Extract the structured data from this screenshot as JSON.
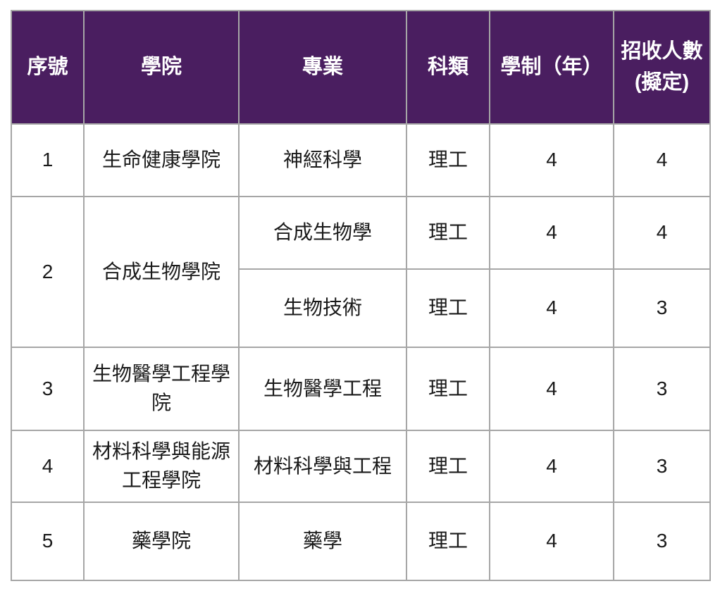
{
  "theme": {
    "header_bg": "#4a1e60",
    "header_text": "#ffffff",
    "border_color": "#a6a6a6",
    "cell_text": "#1a1a1a"
  },
  "table": {
    "columns": [
      {
        "label": "序號"
      },
      {
        "label": "學院"
      },
      {
        "label": "專業"
      },
      {
        "label": "科類"
      },
      {
        "label": "學制（年）"
      },
      {
        "label": "招收人數",
        "label_line2": "(擬定)"
      }
    ],
    "rows": [
      {
        "no": "1",
        "college": "生命健康學院",
        "major": "神經科學",
        "category": "理工",
        "years": "4",
        "quota": "4"
      },
      {
        "no": "2",
        "college": "合成生物學院",
        "major": "合成生物學",
        "category": "理工",
        "years": "4",
        "quota": "4"
      },
      {
        "major": "生物技術",
        "category": "理工",
        "years": "4",
        "quota": "3"
      },
      {
        "no": "3",
        "college": "生物醫學工程學院",
        "major": "生物醫學工程",
        "category": "理工",
        "years": "4",
        "quota": "3"
      },
      {
        "no": "4",
        "college": "材料科學與能源工程學院",
        "major": "材料科學與工程",
        "category": "理工",
        "years": "4",
        "quota": "3"
      },
      {
        "no": "5",
        "college": "藥學院",
        "major": "藥學",
        "category": "理工",
        "years": "4",
        "quota": "3"
      }
    ]
  }
}
